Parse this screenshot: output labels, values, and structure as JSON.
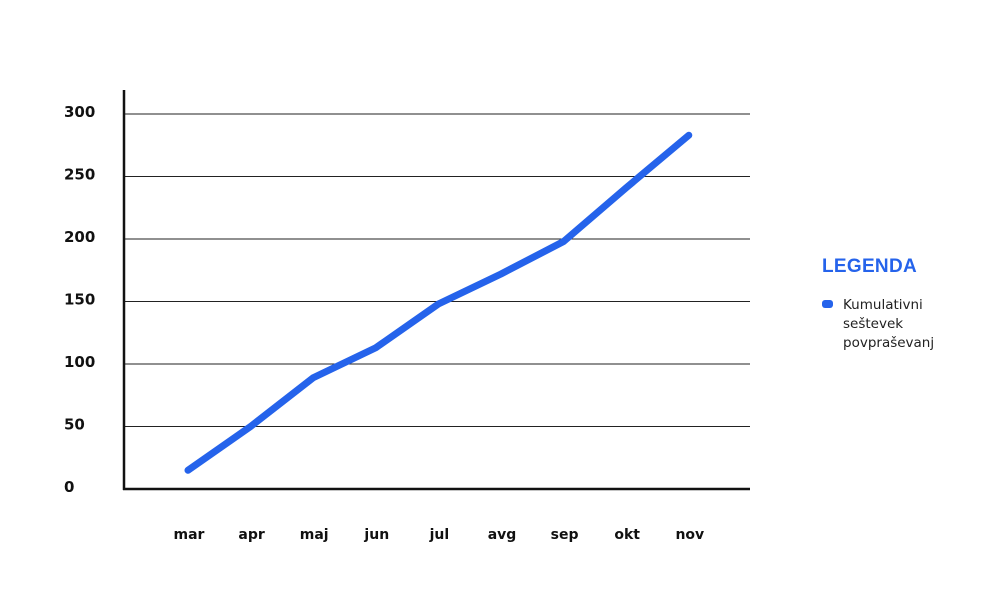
{
  "chart_data": {
    "type": "line",
    "categories": [
      "mar",
      "apr",
      "maj",
      "jun",
      "jul",
      "avg",
      "sep",
      "okt",
      "nov"
    ],
    "yticks": [
      0,
      50,
      100,
      150,
      200,
      250,
      300
    ],
    "ylim": [
      0,
      300
    ],
    "grid": true,
    "legend_position": "right",
    "series": [
      {
        "name": "Kumulativni\nseštevek\npovpraševanj",
        "values": [
          15,
          50,
          89,
          113,
          148,
          172,
          198,
          241,
          283
        ],
        "color": "#2563eb"
      }
    ]
  },
  "legend": {
    "title": "LEGENDA"
  }
}
